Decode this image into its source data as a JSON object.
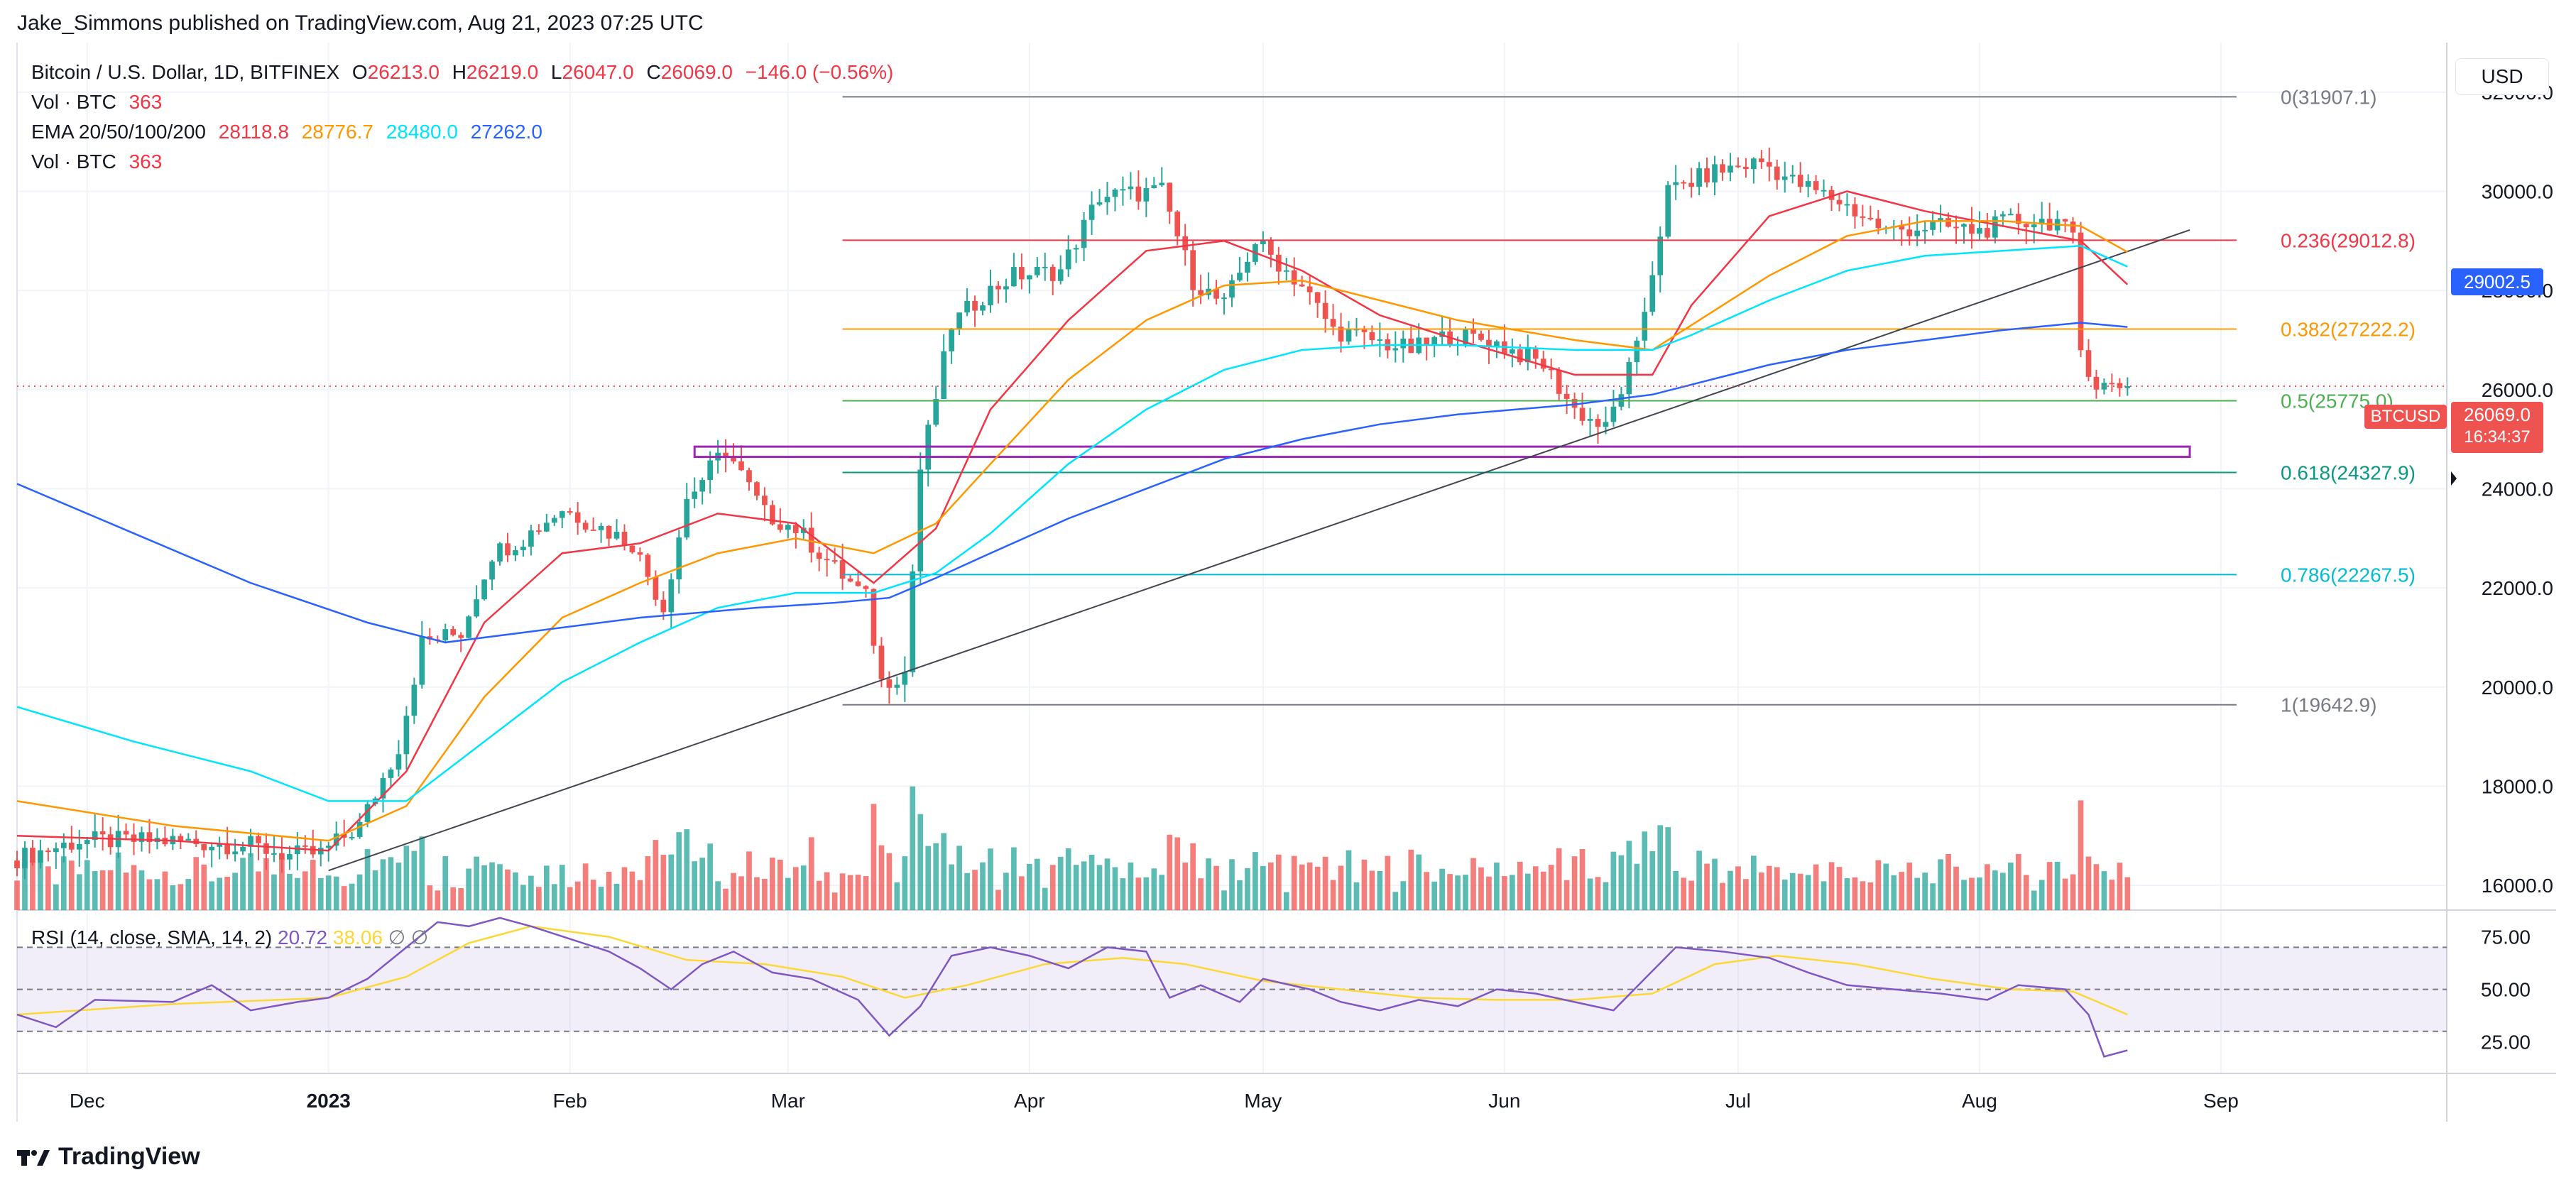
{
  "publisher_line": "Jake_Simmons published on TradingView.com, Aug 21, 2023 07:25 UTC",
  "symbol": {
    "name": "Bitcoin / U.S. Dollar, 1D, BITFINEX",
    "o_label": "O",
    "o": "26213.0",
    "h_label": "H",
    "h": "26219.0",
    "l_label": "L",
    "l": "26047.0",
    "c_label": "C",
    "c": "26069.0",
    "change": "−146.0 (−0.56%)"
  },
  "vol_label": "Vol · BTC",
  "vol_value": "363",
  "ema_label": "EMA 20/50/100/200",
  "ema_values": [
    "28118.8",
    "28776.7",
    "28480.0",
    "27262.0"
  ],
  "vol2_label": "Vol · BTC",
  "vol2_value": "363",
  "currency_button": "USD",
  "rsi_label": "RSI (14, close, SMA, 14, 2)",
  "rsi_value": "20.72",
  "rsi_sma_value": "38.06",
  "rsi_null_1": "∅",
  "rsi_null_2": "∅",
  "price_tag": {
    "ticker": "BTCUSD",
    "price": "26069.0",
    "countdown": "16:34:37"
  },
  "fib_tag": "29002.5",
  "brand": "TradingView",
  "colors": {
    "up": "#26a69a",
    "down": "#ef5350",
    "ema20": "#f23645",
    "ema50": "#ff9800",
    "ema100": "#00e5ff",
    "ema200": "#2962ff",
    "rsi": "#7e57c2",
    "rsi_sma": "#fdd835"
  },
  "chart_data": {
    "type": "candlestick",
    "title": "Bitcoin / U.S. Dollar, 1D, BITFINEX",
    "ylim": [
      15500,
      33000
    ],
    "y_ticks": [
      "16000.0",
      "18000.0",
      "20000.0",
      "22000.0",
      "24000.0",
      "26000.0",
      "28000.0",
      "30000.0",
      "32000.0"
    ],
    "x_ticks": [
      "Dec",
      "2023",
      "Feb",
      "Mar",
      "Apr",
      "May",
      "Jun",
      "Jul",
      "Aug",
      "Sep"
    ],
    "x_tick_days": [
      9,
      40,
      71,
      99,
      130,
      160,
      191,
      221,
      252,
      283
    ],
    "last_day": 271,
    "days_span": 312,
    "ohlc_keypoints": [
      [
        0,
        16500
      ],
      [
        9,
        16900
      ],
      [
        20,
        16900
      ],
      [
        31,
        16800
      ],
      [
        36,
        16600
      ],
      [
        40,
        16650
      ],
      [
        45,
        17200
      ],
      [
        50,
        18800
      ],
      [
        53,
        20900
      ],
      [
        58,
        21100
      ],
      [
        62,
        22700
      ],
      [
        66,
        23000
      ],
      [
        71,
        23600
      ],
      [
        80,
        22900
      ],
      [
        84,
        21600
      ],
      [
        87,
        23800
      ],
      [
        92,
        24800
      ],
      [
        97,
        23500
      ],
      [
        101,
        23200
      ],
      [
        106,
        22400
      ],
      [
        110,
        21800
      ],
      [
        112,
        20100
      ],
      [
        115,
        20300
      ],
      [
        117,
        24400
      ],
      [
        121,
        27300
      ],
      [
        125,
        27900
      ],
      [
        129,
        28300
      ],
      [
        135,
        28400
      ],
      [
        140,
        29900
      ],
      [
        148,
        30000
      ],
      [
        152,
        28200
      ],
      [
        156,
        27700
      ],
      [
        160,
        29000
      ],
      [
        166,
        28100
      ],
      [
        170,
        27200
      ],
      [
        175,
        27000
      ],
      [
        180,
        26800
      ],
      [
        185,
        27100
      ],
      [
        190,
        27000
      ],
      [
        197,
        26500
      ],
      [
        201,
        25600
      ],
      [
        205,
        25200
      ],
      [
        209,
        26800
      ],
      [
        213,
        30000
      ],
      [
        219,
        30400
      ],
      [
        225,
        30600
      ],
      [
        229,
        30200
      ],
      [
        235,
        29800
      ],
      [
        241,
        29200
      ],
      [
        247,
        29300
      ],
      [
        253,
        29200
      ],
      [
        257,
        29400
      ],
      [
        263,
        29400
      ],
      [
        265,
        29000
      ],
      [
        266,
        26800
      ],
      [
        268,
        26100
      ],
      [
        271,
        26069
      ]
    ],
    "ema20": [
      [
        0,
        17000
      ],
      [
        20,
        16900
      ],
      [
        40,
        16700
      ],
      [
        50,
        18300
      ],
      [
        60,
        21300
      ],
      [
        70,
        22700
      ],
      [
        80,
        22900
      ],
      [
        90,
        23500
      ],
      [
        100,
        23300
      ],
      [
        110,
        22100
      ],
      [
        118,
        23200
      ],
      [
        125,
        25600
      ],
      [
        135,
        27400
      ],
      [
        145,
        28800
      ],
      [
        155,
        29000
      ],
      [
        165,
        28400
      ],
      [
        175,
        27500
      ],
      [
        185,
        27000
      ],
      [
        200,
        26300
      ],
      [
        210,
        26300
      ],
      [
        215,
        27700
      ],
      [
        225,
        29500
      ],
      [
        235,
        30000
      ],
      [
        245,
        29600
      ],
      [
        255,
        29300
      ],
      [
        265,
        29000
      ],
      [
        271,
        28118.8
      ]
    ],
    "ema50": [
      [
        0,
        17700
      ],
      [
        20,
        17200
      ],
      [
        40,
        16900
      ],
      [
        50,
        17600
      ],
      [
        60,
        19800
      ],
      [
        70,
        21400
      ],
      [
        80,
        22100
      ],
      [
        90,
        22700
      ],
      [
        100,
        23000
      ],
      [
        110,
        22700
      ],
      [
        118,
        23300
      ],
      [
        125,
        24500
      ],
      [
        135,
        26200
      ],
      [
        145,
        27400
      ],
      [
        155,
        28100
      ],
      [
        165,
        28200
      ],
      [
        175,
        27800
      ],
      [
        185,
        27400
      ],
      [
        200,
        27000
      ],
      [
        210,
        26800
      ],
      [
        215,
        27300
      ],
      [
        225,
        28300
      ],
      [
        235,
        29100
      ],
      [
        245,
        29400
      ],
      [
        255,
        29400
      ],
      [
        265,
        29300
      ],
      [
        271,
        28776.7
      ]
    ],
    "ema100": [
      [
        0,
        19600
      ],
      [
        15,
        18900
      ],
      [
        30,
        18300
      ],
      [
        40,
        17700
      ],
      [
        50,
        17700
      ],
      [
        60,
        18900
      ],
      [
        70,
        20100
      ],
      [
        80,
        20900
      ],
      [
        90,
        21600
      ],
      [
        100,
        21900
      ],
      [
        110,
        21900
      ],
      [
        118,
        22300
      ],
      [
        125,
        23100
      ],
      [
        135,
        24500
      ],
      [
        145,
        25600
      ],
      [
        155,
        26400
      ],
      [
        165,
        26800
      ],
      [
        175,
        26900
      ],
      [
        185,
        26900
      ],
      [
        200,
        26800
      ],
      [
        210,
        26800
      ],
      [
        215,
        27100
      ],
      [
        225,
        27800
      ],
      [
        235,
        28400
      ],
      [
        245,
        28700
      ],
      [
        255,
        28800
      ],
      [
        265,
        28900
      ],
      [
        271,
        28480.0
      ]
    ],
    "ema200": [
      [
        0,
        24100
      ],
      [
        15,
        23100
      ],
      [
        30,
        22100
      ],
      [
        45,
        21300
      ],
      [
        55,
        20900
      ],
      [
        65,
        21100
      ],
      [
        80,
        21400
      ],
      [
        95,
        21600
      ],
      [
        105,
        21700
      ],
      [
        112,
        21800
      ],
      [
        118,
        22200
      ],
      [
        125,
        22700
      ],
      [
        135,
        23400
      ],
      [
        145,
        24000
      ],
      [
        155,
        24600
      ],
      [
        165,
        25000
      ],
      [
        175,
        25300
      ],
      [
        185,
        25500
      ],
      [
        200,
        25700
      ],
      [
        210,
        25900
      ],
      [
        215,
        26100
      ],
      [
        225,
        26500
      ],
      [
        235,
        26800
      ],
      [
        245,
        27000
      ],
      [
        255,
        27200
      ],
      [
        265,
        27350
      ],
      [
        271,
        27262.0
      ]
    ],
    "trendline": {
      "from": [
        40,
        16300
      ],
      "to": [
        271,
        29100
      ]
    },
    "fib_levels": [
      {
        "ratio": "0",
        "price": 31907.1,
        "label": "0(31907.1)",
        "color": "#787b86"
      },
      {
        "ratio": "0.236",
        "price": 29012.8,
        "label": "0.236(29012.8)",
        "color": "#f23645"
      },
      {
        "ratio": "0.382",
        "price": 27222.2,
        "label": "0.382(27222.2)",
        "color": "#ff9800"
      },
      {
        "ratio": "0.5",
        "price": 25775.0,
        "label": "0.5(25775.0)",
        "color": "#4caf50"
      },
      {
        "ratio": "0.618",
        "price": 24327.9,
        "label": "0.618(24327.9)",
        "color": "#089981"
      },
      {
        "ratio": "0.786",
        "price": 22267.5,
        "label": "0.786(22267.5)",
        "color": "#00bcd4"
      },
      {
        "ratio": "1",
        "price": 19642.9,
        "label": "1(19642.9)",
        "color": "#787b86"
      }
    ],
    "fib_start_day": 106,
    "support_box": {
      "from_day": 87,
      "to_day": 271,
      "top": 24850,
      "bottom": 24700,
      "color": "#9c27b0"
    },
    "rsi": {
      "ylim": [
        10,
        85
      ],
      "ticks": [
        "75.00",
        "50.00",
        "25.00"
      ],
      "band": [
        30,
        70
      ],
      "points": [
        [
          0,
          38
        ],
        [
          5,
          32
        ],
        [
          10,
          45
        ],
        [
          20,
          44
        ],
        [
          25,
          52
        ],
        [
          30,
          40
        ],
        [
          36,
          44
        ],
        [
          40,
          46
        ],
        [
          45,
          55
        ],
        [
          50,
          70
        ],
        [
          54,
          82
        ],
        [
          58,
          80
        ],
        [
          62,
          84
        ],
        [
          66,
          80
        ],
        [
          71,
          74
        ],
        [
          76,
          68
        ],
        [
          80,
          60
        ],
        [
          84,
          50
        ],
        [
          88,
          62
        ],
        [
          92,
          68
        ],
        [
          97,
          58
        ],
        [
          102,
          55
        ],
        [
          108,
          45
        ],
        [
          112,
          28
        ],
        [
          116,
          42
        ],
        [
          120,
          66
        ],
        [
          125,
          70
        ],
        [
          130,
          66
        ],
        [
          135,
          60
        ],
        [
          140,
          70
        ],
        [
          145,
          68
        ],
        [
          148,
          46
        ],
        [
          152,
          52
        ],
        [
          157,
          44
        ],
        [
          160,
          55
        ],
        [
          166,
          50
        ],
        [
          170,
          44
        ],
        [
          175,
          40
        ],
        [
          180,
          45
        ],
        [
          185,
          42
        ],
        [
          190,
          50
        ],
        [
          195,
          48
        ],
        [
          200,
          44
        ],
        [
          205,
          40
        ],
        [
          209,
          55
        ],
        [
          213,
          70
        ],
        [
          219,
          68
        ],
        [
          225,
          65
        ],
        [
          230,
          58
        ],
        [
          235,
          52
        ],
        [
          241,
          50
        ],
        [
          247,
          48
        ],
        [
          253,
          45
        ],
        [
          257,
          52
        ],
        [
          263,
          50
        ],
        [
          266,
          38
        ],
        [
          268,
          18
        ],
        [
          271,
          21
        ]
      ],
      "sma_points": [
        [
          0,
          38
        ],
        [
          20,
          43
        ],
        [
          40,
          46
        ],
        [
          50,
          56
        ],
        [
          58,
          72
        ],
        [
          66,
          80
        ],
        [
          76,
          75
        ],
        [
          86,
          64
        ],
        [
          96,
          62
        ],
        [
          106,
          56
        ],
        [
          114,
          46
        ],
        [
          122,
          52
        ],
        [
          132,
          62
        ],
        [
          142,
          65
        ],
        [
          150,
          62
        ],
        [
          160,
          54
        ],
        [
          170,
          50
        ],
        [
          180,
          46
        ],
        [
          190,
          45
        ],
        [
          200,
          45
        ],
        [
          210,
          48
        ],
        [
          218,
          62
        ],
        [
          226,
          66
        ],
        [
          236,
          62
        ],
        [
          246,
          55
        ],
        [
          256,
          50
        ],
        [
          264,
          49
        ],
        [
          271,
          38
        ]
      ]
    }
  }
}
